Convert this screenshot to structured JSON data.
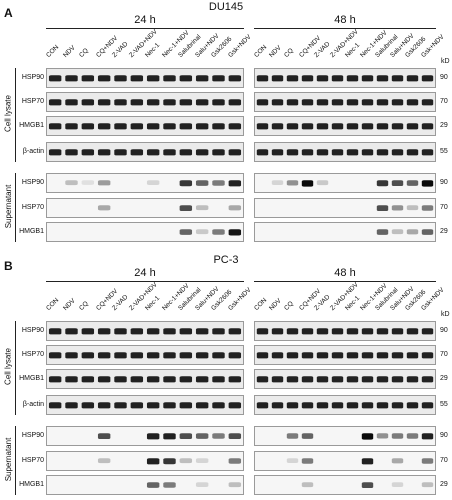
{
  "kd_unit": "kD",
  "time_labels": [
    "24 h",
    "48 h"
  ],
  "side_labels": {
    "cell_lysate": "Cell lysate",
    "supernatant": "Supernatant"
  },
  "lanes": [
    "CON",
    "NDV",
    "CQ",
    "CQ+NDV",
    "Z-VAD",
    "Z-VAD+NDV",
    "Nec-1",
    "Nec-1+NDV",
    "Salubrinal",
    "Salu+NDV",
    "Gsk2606",
    "Gsk+NDV"
  ],
  "panels": [
    {
      "letter": "A",
      "cell_line": "DU145",
      "lysate": [
        {
          "protein": "HSP90",
          "kd": "90"
        },
        {
          "protein": "HSP70",
          "kd": "70"
        },
        {
          "protein": "HMGB1",
          "kd": "29"
        },
        {
          "protein": "β-actin",
          "kd": "55"
        }
      ],
      "supernatant": [
        {
          "protein": "HSP90",
          "kd": "90"
        },
        {
          "protein": "HSP70",
          "kd": "70"
        },
        {
          "protein": "HMGB1",
          "kd": "29"
        }
      ]
    },
    {
      "letter": "B",
      "cell_line": "PC-3",
      "lysate": [
        {
          "protein": "HSP90",
          "kd": "90"
        },
        {
          "protein": "HSP70",
          "kd": "70"
        },
        {
          "protein": "HMGB1",
          "kd": "29"
        },
        {
          "protein": "β-actin",
          "kd": "55"
        }
      ],
      "supernatant": [
        {
          "protein": "HSP90",
          "kd": "90"
        },
        {
          "protein": "HSP70",
          "kd": "70"
        },
        {
          "protein": "HMGB1",
          "kd": "29"
        }
      ]
    }
  ]
}
